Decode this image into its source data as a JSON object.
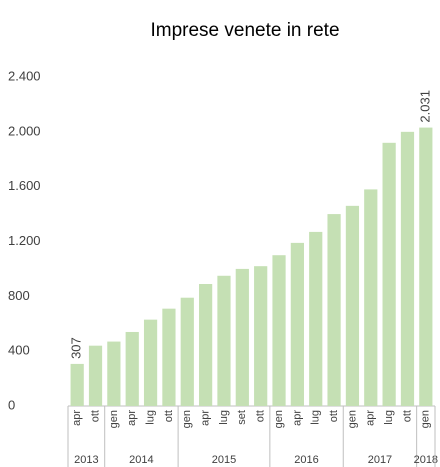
{
  "chart_data": {
    "type": "bar",
    "title": "Imprese venete in rete",
    "categories": [
      "apr",
      "ott",
      "gen",
      "apr",
      "lug",
      "ott",
      "gen",
      "apr",
      "lug",
      "set",
      "ott",
      "gen",
      "apr",
      "lug",
      "ott",
      "gen",
      "apr",
      "lug",
      "ott",
      "gen"
    ],
    "years": [
      "2013",
      null,
      "2014",
      null,
      null,
      null,
      "2015",
      null,
      null,
      null,
      null,
      "2016",
      null,
      null,
      null,
      "2017",
      null,
      null,
      null,
      "2018"
    ],
    "values": [
      307,
      440,
      470,
      540,
      630,
      710,
      790,
      890,
      950,
      1000,
      1020,
      1100,
      1190,
      1270,
      1400,
      1460,
      1580,
      1920,
      2000,
      2031
    ],
    "value_labels": [
      "307",
      null,
      null,
      null,
      null,
      null,
      null,
      null,
      null,
      null,
      null,
      null,
      null,
      null,
      null,
      null,
      null,
      null,
      null,
      "2.031"
    ],
    "color": "#c5e0b4",
    "ylim": [
      0,
      2400
    ],
    "yticks": [
      0,
      400,
      800,
      {
        "value": 1200,
        "label": "1.200"
      },
      {
        "value": 1600,
        "label": "1.600"
      },
      {
        "value": 2000,
        "label": "2.000"
      },
      {
        "value": 2400,
        "label": "2.400"
      }
    ],
    "grid": false
  }
}
